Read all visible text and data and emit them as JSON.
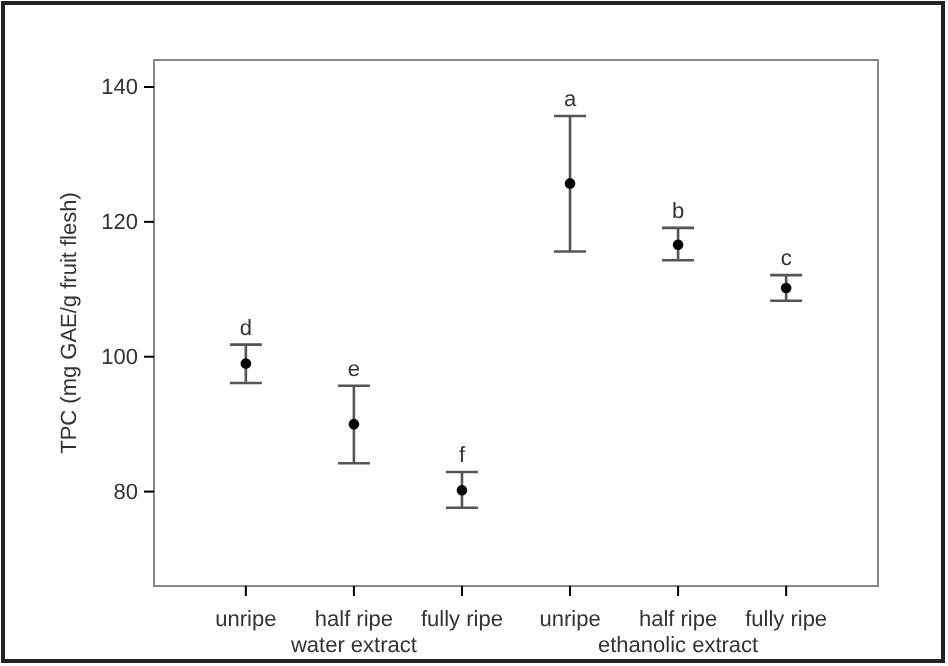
{
  "chart_data": {
    "type": "scatter",
    "ylabel": "TPC (mg GAE/g fruit flesh)",
    "categories": [
      "unripe",
      "half ripe",
      "fully ripe",
      "unripe",
      "half ripe",
      "fully ripe"
    ],
    "values": [
      99.0,
      90.0,
      80.2,
      125.7,
      116.6,
      110.2
    ],
    "errors": [
      [
        96.1,
        101.8
      ],
      [
        84.2,
        95.7
      ],
      [
        77.6,
        82.9
      ],
      [
        115.6,
        135.7
      ],
      [
        114.3,
        119.1
      ],
      [
        108.3,
        112.1
      ]
    ],
    "color": "#000000",
    "marker": "circle",
    "ylim": [
      66,
      144
    ],
    "yticks": [
      80,
      100,
      120,
      140
    ],
    "grid": false,
    "annotations": [
      "d",
      "e",
      "f",
      "a",
      "b",
      "c",
      "water extract",
      "ethanolic extract"
    ]
  }
}
